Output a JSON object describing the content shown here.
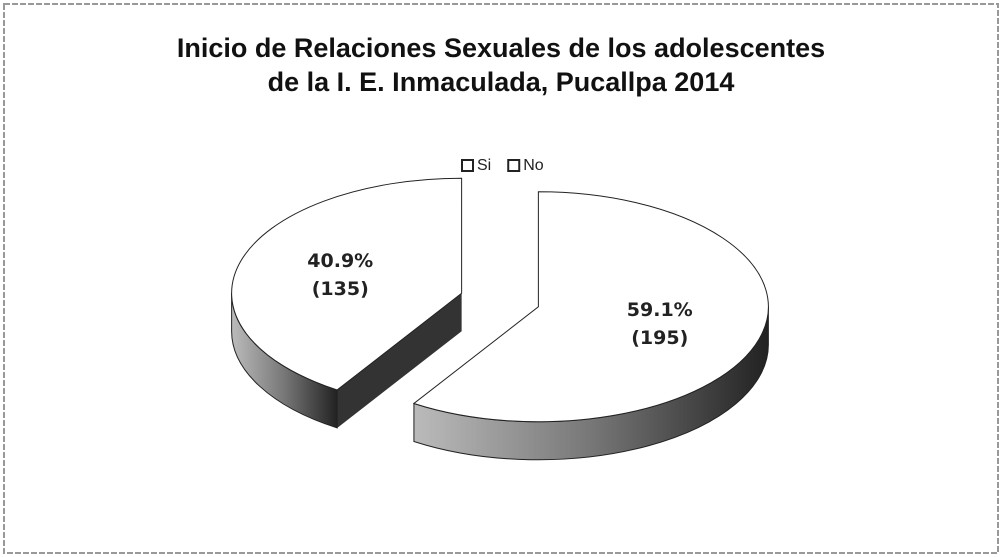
{
  "chart_data": {
    "type": "pie3d",
    "title": [
      "Inicio de Relaciones Sexuales de los adolescentes",
      "de la I. E. Inmaculada, Pucallpa 2014"
    ],
    "categories": [
      "Si",
      "No"
    ],
    "values": [
      59.1,
      40.9
    ],
    "value_labels": [
      "59.1%",
      "40.9%"
    ],
    "counts": [
      195,
      135
    ],
    "count_labels": [
      "(195)",
      "(135)"
    ],
    "colors": [
      "#ffffff",
      "#ffffff"
    ],
    "legend": "top"
  }
}
